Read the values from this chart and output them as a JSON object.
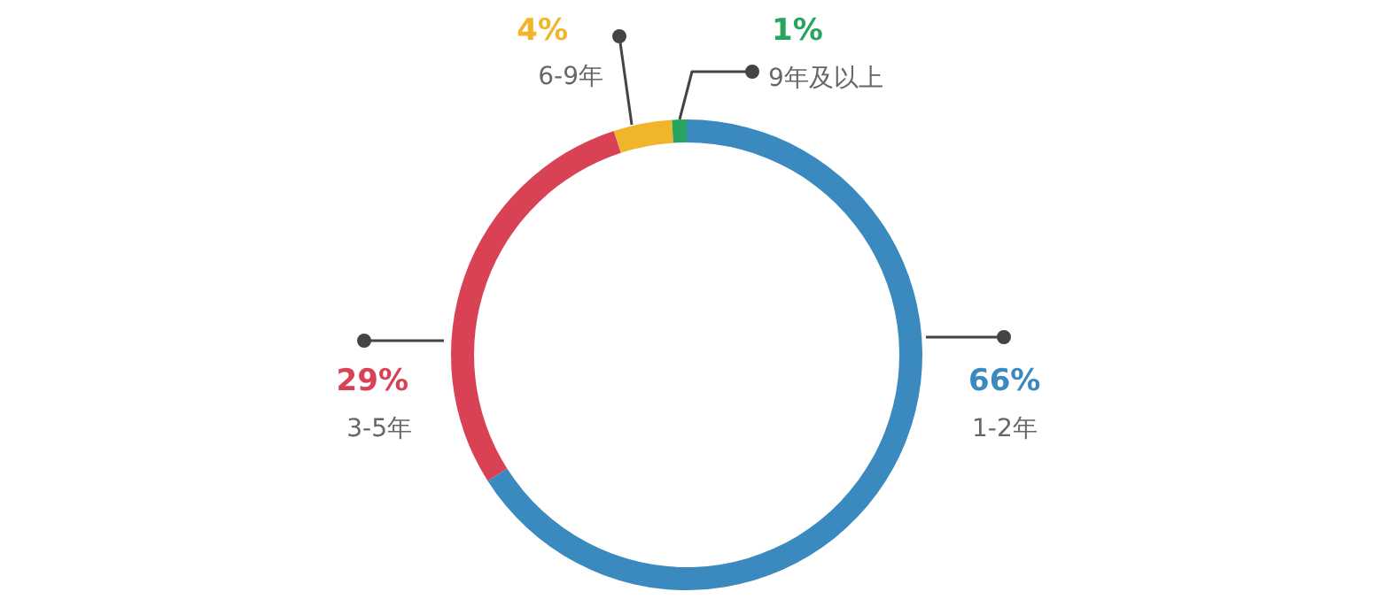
{
  "chart_data": {
    "type": "donut",
    "categories": [
      "1-2年",
      "3-5年",
      "6-9年",
      "9年及以上"
    ],
    "values": [
      66,
      29,
      4,
      1
    ],
    "value_labels": [
      "66%",
      "29%",
      "4%",
      "1%"
    ],
    "colors": [
      "#3a8ac0",
      "#d94255",
      "#f0b52b",
      "#27a45f"
    ]
  }
}
